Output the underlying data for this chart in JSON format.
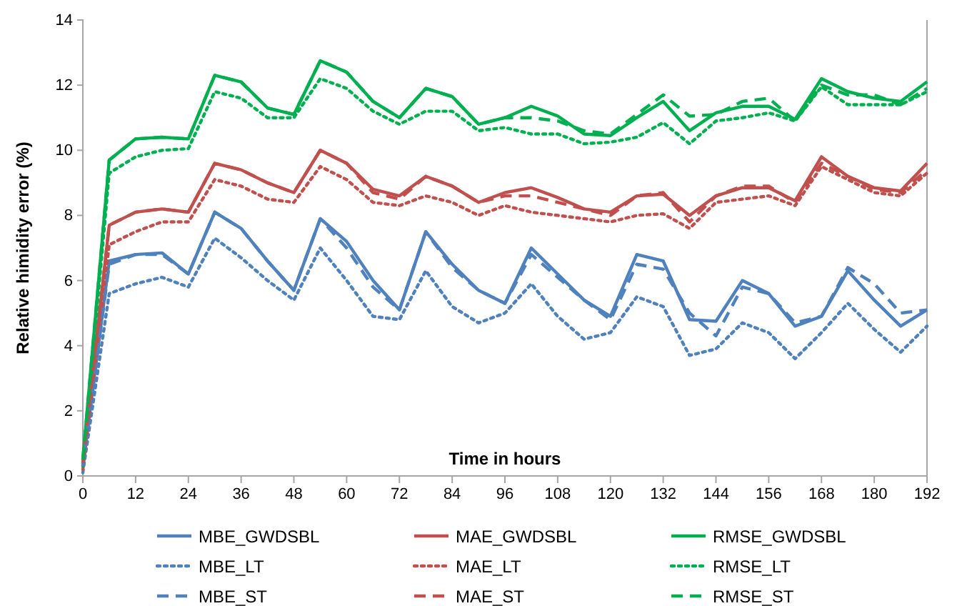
{
  "chart_data": {
    "type": "line",
    "xlabel": "Time in hours",
    "ylabel": "Relative himidity error (%)",
    "x": [
      0,
      6,
      12,
      18,
      24,
      30,
      36,
      42,
      48,
      54,
      60,
      66,
      72,
      78,
      84,
      90,
      96,
      102,
      108,
      114,
      120,
      126,
      132,
      138,
      144,
      150,
      156,
      162,
      168,
      174,
      180,
      186,
      192
    ],
    "xlim": [
      0,
      192
    ],
    "xticks": [
      0,
      12,
      24,
      36,
      48,
      60,
      72,
      84,
      96,
      108,
      120,
      132,
      144,
      156,
      168,
      180,
      192
    ],
    "ylim": [
      0,
      14
    ],
    "yticks": [
      0,
      2,
      4,
      6,
      8,
      10,
      12,
      14
    ],
    "grid": false,
    "legend": "bottom",
    "marker": "none",
    "series": [
      {
        "name": "MBE_GWDSBL",
        "color": "#4f81bd",
        "line_style": "solid",
        "values": [
          0.3,
          6.6,
          6.8,
          6.85,
          6.2,
          8.1,
          7.6,
          6.6,
          5.7,
          7.9,
          7.2,
          6.0,
          5.1,
          7.5,
          6.5,
          5.7,
          5.3,
          7.0,
          6.2,
          5.4,
          4.9,
          6.8,
          6.6,
          4.8,
          4.75,
          6.0,
          5.6,
          4.6,
          4.9,
          6.3,
          5.4,
          4.6,
          5.1
        ]
      },
      {
        "name": "MAE_GWDSBL",
        "color": "#c0504d",
        "line_style": "solid",
        "values": [
          0.4,
          7.7,
          8.1,
          8.2,
          8.1,
          9.6,
          9.4,
          9.0,
          8.7,
          10.0,
          9.6,
          8.8,
          8.6,
          9.2,
          8.9,
          8.4,
          8.7,
          8.85,
          8.55,
          8.2,
          8.1,
          8.6,
          8.65,
          8.0,
          8.6,
          8.85,
          8.85,
          8.45,
          9.8,
          9.2,
          8.85,
          8.75,
          9.6
        ]
      },
      {
        "name": "RMSE_GWDSBL",
        "color": "#00b050",
        "line_style": "solid",
        "values": [
          0.5,
          9.7,
          10.35,
          10.4,
          10.35,
          12.3,
          12.1,
          11.3,
          11.1,
          12.75,
          12.4,
          11.5,
          11.0,
          11.9,
          11.65,
          10.8,
          11.0,
          11.35,
          11.05,
          10.5,
          10.45,
          11.0,
          11.5,
          10.6,
          11.15,
          11.35,
          11.35,
          10.95,
          12.2,
          11.8,
          11.6,
          11.5,
          12.1
        ]
      },
      {
        "name": "MBE_LT",
        "color": "#4f81bd",
        "line_style": "dotted",
        "values": [
          0.1,
          5.6,
          5.9,
          6.1,
          5.8,
          7.3,
          6.7,
          6.0,
          5.4,
          7.0,
          6.0,
          4.9,
          4.8,
          6.3,
          5.2,
          4.7,
          5.0,
          5.9,
          4.9,
          4.2,
          4.4,
          5.5,
          5.2,
          3.7,
          3.9,
          4.7,
          4.4,
          3.6,
          4.4,
          5.3,
          4.5,
          3.8,
          4.6
        ]
      },
      {
        "name": "MAE_LT",
        "color": "#c0504d",
        "line_style": "dotted",
        "values": [
          0.2,
          7.1,
          7.5,
          7.8,
          7.8,
          9.1,
          8.9,
          8.5,
          8.4,
          9.5,
          9.1,
          8.4,
          8.3,
          8.6,
          8.4,
          8.0,
          8.3,
          8.1,
          8.0,
          7.9,
          7.8,
          8.0,
          8.05,
          7.6,
          8.4,
          8.5,
          8.6,
          8.3,
          9.5,
          9.1,
          8.7,
          8.6,
          9.3
        ]
      },
      {
        "name": "RMSE_LT",
        "color": "#00b050",
        "line_style": "dotted",
        "values": [
          0.3,
          9.3,
          9.8,
          10.0,
          10.05,
          11.8,
          11.6,
          11.0,
          11.0,
          12.2,
          11.9,
          11.2,
          10.8,
          11.2,
          11.2,
          10.6,
          10.7,
          10.5,
          10.5,
          10.2,
          10.25,
          10.4,
          10.85,
          10.2,
          10.9,
          11.0,
          11.15,
          10.9,
          11.95,
          11.4,
          11.4,
          11.4,
          11.8
        ]
      },
      {
        "name": "MBE_ST",
        "color": "#4f81bd",
        "line_style": "dashed",
        "values": [
          0.3,
          6.5,
          6.8,
          6.8,
          6.2,
          8.1,
          7.6,
          6.6,
          5.7,
          7.9,
          7.0,
          5.8,
          5.1,
          7.5,
          6.4,
          5.7,
          5.3,
          6.8,
          6.1,
          5.4,
          4.8,
          6.5,
          6.35,
          5.0,
          4.3,
          5.8,
          5.6,
          4.7,
          4.9,
          6.4,
          5.9,
          5.0,
          5.1
        ]
      },
      {
        "name": "MAE_ST",
        "color": "#c0504d",
        "line_style": "dashed",
        "values": [
          0.4,
          7.7,
          8.1,
          8.2,
          8.1,
          9.6,
          9.4,
          9.0,
          8.7,
          10.0,
          9.6,
          8.7,
          8.5,
          9.2,
          8.9,
          8.4,
          8.6,
          8.6,
          8.4,
          8.2,
          8.0,
          8.6,
          8.7,
          7.8,
          8.6,
          8.9,
          8.9,
          8.4,
          9.6,
          9.2,
          8.8,
          8.7,
          9.4
        ]
      },
      {
        "name": "RMSE_ST",
        "color": "#00b050",
        "line_style": "dashed",
        "values": [
          0.5,
          9.7,
          10.35,
          10.4,
          10.35,
          12.3,
          12.1,
          11.3,
          11.1,
          12.75,
          12.4,
          11.5,
          11.0,
          11.9,
          11.65,
          10.8,
          11.0,
          11.0,
          10.9,
          10.6,
          10.5,
          11.1,
          11.7,
          11.05,
          11.1,
          11.5,
          11.6,
          10.9,
          12.0,
          11.7,
          11.7,
          11.4,
          11.9
        ]
      }
    ]
  }
}
